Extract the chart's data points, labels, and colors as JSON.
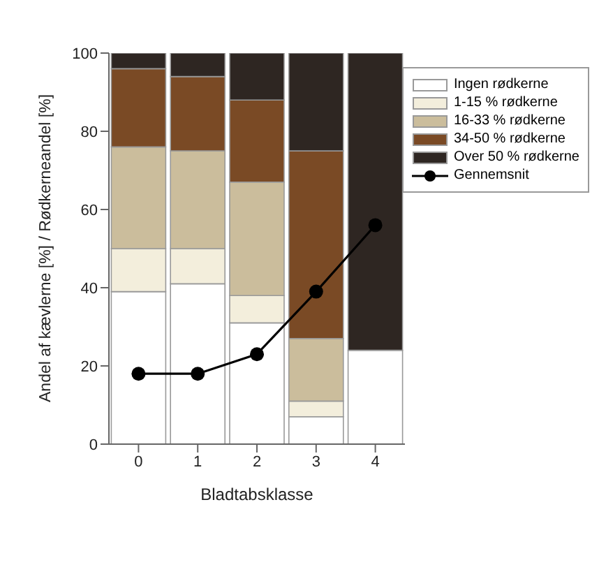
{
  "chart_data": {
    "type": "bar",
    "stacked": true,
    "categories": [
      "0",
      "1",
      "2",
      "3",
      "4"
    ],
    "xlabel": "Bladtabsklasse",
    "ylabel": "Andel af kævlerne [%] / Rødkerneandel [%]",
    "ylim": [
      0,
      100
    ],
    "yticks": [
      0,
      20,
      40,
      60,
      80,
      100
    ],
    "grid": false,
    "legend": "right",
    "marker": "circle",
    "series": [
      {
        "name": "Ingen rødkerne",
        "color": "#ffffff",
        "values": [
          39,
          41,
          31,
          7,
          24
        ]
      },
      {
        "name": "1-15 % rødkerne",
        "color": "#f3eedc",
        "values": [
          11,
          9,
          7,
          4,
          0
        ]
      },
      {
        "name": "16-33 % rødkerne",
        "color": "#cbbd9c",
        "values": [
          26,
          25,
          29,
          16,
          0
        ]
      },
      {
        "name": "34-50 % rødkerne",
        "color": "#7a4a25",
        "values": [
          20,
          19,
          21,
          48,
          0
        ]
      },
      {
        "name": "Over 50 % rødkerne",
        "color": "#2e2622",
        "values": [
          4,
          6,
          12,
          25,
          76
        ]
      },
      {
        "name": "Gennemsnit",
        "type": "line",
        "color": "#000000",
        "values": [
          18,
          18,
          23,
          39,
          56
        ]
      }
    ]
  }
}
